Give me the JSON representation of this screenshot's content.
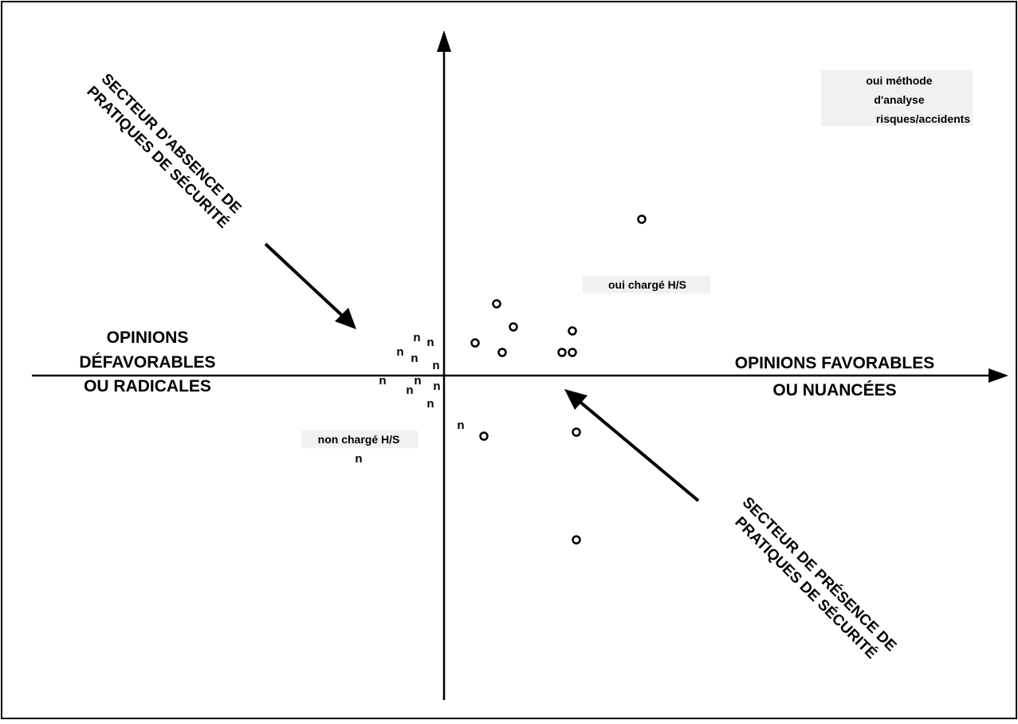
{
  "axis_labels": {
    "left_line1": "OPINIONS",
    "left_line2": "DÉFAVORABLES",
    "left_line3": "OU RADICALES",
    "right_line1": "OPINIONS FAVORABLES",
    "right_line2": "OU NUANCÉES"
  },
  "sectors": {
    "absence_line1": "SECTEUR D'ABSENCE DE",
    "absence_line2": "PRATIQUES DE SÉCURITÉ",
    "presence_line1": "SECTEUR DE PRÉSENCE DE",
    "presence_line2": "PRATIQUES DE SÉCURITÉ"
  },
  "modalities": {
    "oui_methode_line1": "oui méthode",
    "oui_methode_line2": "d'analyse",
    "oui_methode_line3": "risques/accidents",
    "oui_charge": "oui chargé H/S",
    "non_charge": "non chargé H/S"
  },
  "markers": {
    "n_symbol": "n",
    "o_count": 12,
    "n_count": 13
  },
  "colors": {
    "ink": "#000000",
    "label_halo": "#e6e6e6",
    "background": "#ffffff"
  }
}
